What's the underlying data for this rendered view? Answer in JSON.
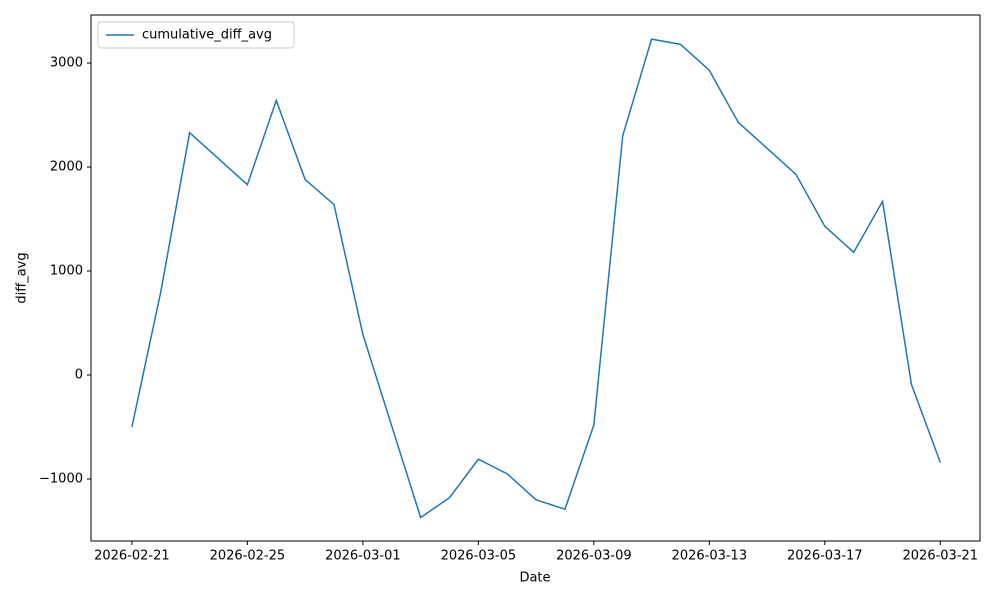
{
  "chart_data": {
    "type": "line",
    "x": [
      "2026-02-21",
      "2026-02-22",
      "2026-02-23",
      "2026-02-24",
      "2026-02-25",
      "2026-02-26",
      "2026-02-27",
      "2026-02-28",
      "2026-03-01",
      "2026-03-02",
      "2026-03-03",
      "2026-03-04",
      "2026-03-05",
      "2026-03-06",
      "2026-03-07",
      "2026-03-08",
      "2026-03-09",
      "2026-03-10",
      "2026-03-11",
      "2026-03-12",
      "2026-03-13",
      "2026-03-14",
      "2026-03-15",
      "2026-03-16",
      "2026-03-17",
      "2026-03-18",
      "2026-03-19",
      "2026-03-20",
      "2026-03-21"
    ],
    "series": [
      {
        "name": "cumulative_diff_avg",
        "color": "#1f77b4",
        "values": [
          -500,
          800,
          2330,
          2080,
          1830,
          2640,
          1880,
          1640,
          390,
          -490,
          -1370,
          -1180,
          -810,
          -950,
          -1200,
          -1290,
          -480,
          2300,
          3230,
          3180,
          2930,
          2430,
          2180,
          1930,
          1430,
          1180,
          1670,
          -90,
          -840
        ]
      }
    ],
    "xlabel": "Date",
    "ylabel": "diff_avg",
    "xlim": [
      "2026-02-19T14:00",
      "2026-03-22T09:00"
    ],
    "xticks": [
      "2026-02-21",
      "2026-02-25",
      "2026-03-01",
      "2026-03-05",
      "2026-03-09",
      "2026-03-13",
      "2026-03-17",
      "2026-03-21"
    ],
    "ylim": [
      -1596,
      3462
    ],
    "yticks": [
      {
        "value": -1000,
        "label": "−1000"
      },
      0,
      1000,
      2000,
      3000
    ],
    "legend": "upper-left",
    "grid": false
  }
}
